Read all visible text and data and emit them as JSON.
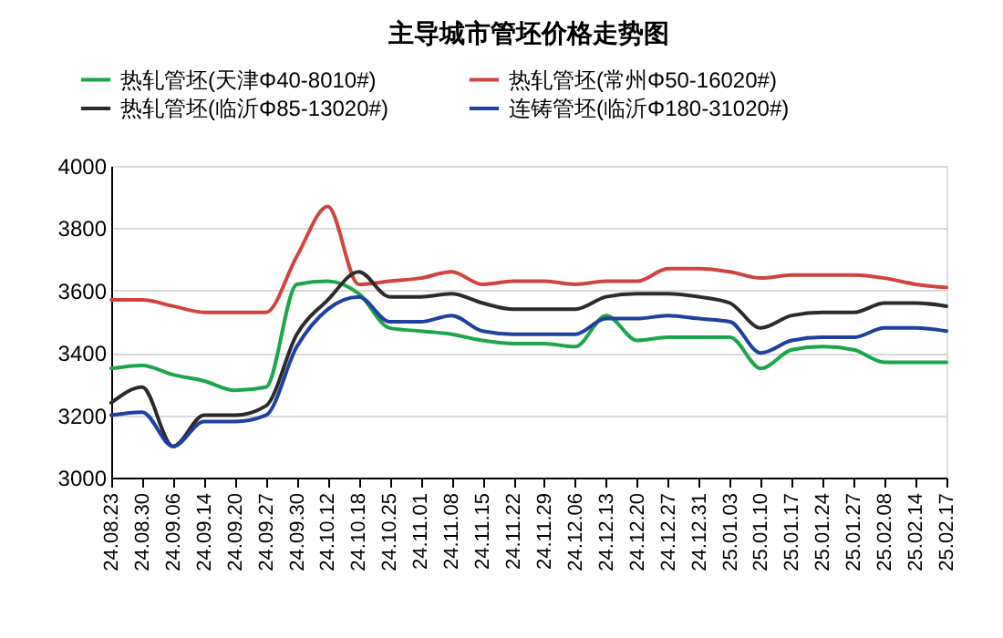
{
  "chart_data": {
    "type": "line",
    "title": "主导城市管坯价格走势图",
    "categories": [
      "24.08.23",
      "24.08.30",
      "24.09.06",
      "24.09.14",
      "24.09.20",
      "24.09.27",
      "24.09.30",
      "24.10.12",
      "24.10.18",
      "24.10.25",
      "24.11.01",
      "24.11.08",
      "24.11.15",
      "24.11.22",
      "24.11.29",
      "24.12.06",
      "24.12.13",
      "24.12.20",
      "24.12.27",
      "24.12.31",
      "25.01.03",
      "25.01.10",
      "25.01.17",
      "25.01.24",
      "25.01.27",
      "25.02.08",
      "25.02.14",
      "25.02.17"
    ],
    "series": [
      {
        "name": "热轧管坯(天津Φ40-8010#)",
        "color": "#1ca64c",
        "values": [
          3350,
          3360,
          3330,
          3310,
          3280,
          3290,
          3620,
          3630,
          3590,
          3480,
          3470,
          3460,
          3440,
          3430,
          3430,
          3420,
          3520,
          3440,
          3450,
          3450,
          3450,
          3350,
          3410,
          3420,
          3410,
          3370,
          3370,
          3370
        ]
      },
      {
        "name": "热轧管坯(常州Φ50-16020#)",
        "color": "#d0443e",
        "values": [
          3570,
          3570,
          3550,
          3530,
          3530,
          3530,
          3710,
          3870,
          3620,
          3630,
          3640,
          3660,
          3620,
          3630,
          3630,
          3620,
          3630,
          3630,
          3670,
          3670,
          3660,
          3640,
          3650,
          3650,
          3650,
          3640,
          3620,
          3610
        ]
      },
      {
        "name": "热轧管坯(临沂Φ85-13020#)",
        "color": "#2b2b2b",
        "values": [
          3240,
          3290,
          3100,
          3200,
          3200,
          3230,
          3460,
          3570,
          3660,
          3580,
          3580,
          3590,
          3560,
          3540,
          3540,
          3540,
          3580,
          3590,
          3590,
          3580,
          3560,
          3480,
          3520,
          3530,
          3530,
          3560,
          3560,
          3550
        ]
      },
      {
        "name": "连铸管坯(临沂Φ180-31020#)",
        "color": "#1e40a0",
        "values": [
          3200,
          3210,
          3100,
          3180,
          3180,
          3200,
          3420,
          3540,
          3580,
          3500,
          3500,
          3520,
          3470,
          3460,
          3460,
          3460,
          3510,
          3510,
          3520,
          3510,
          3500,
          3400,
          3440,
          3450,
          3450,
          3480,
          3480,
          3470
        ]
      }
    ],
    "ylim": [
      3000,
      4000
    ],
    "yticks": [
      3000,
      3200,
      3400,
      3600,
      3800,
      4000
    ],
    "grid": "y",
    "legend": "top"
  }
}
